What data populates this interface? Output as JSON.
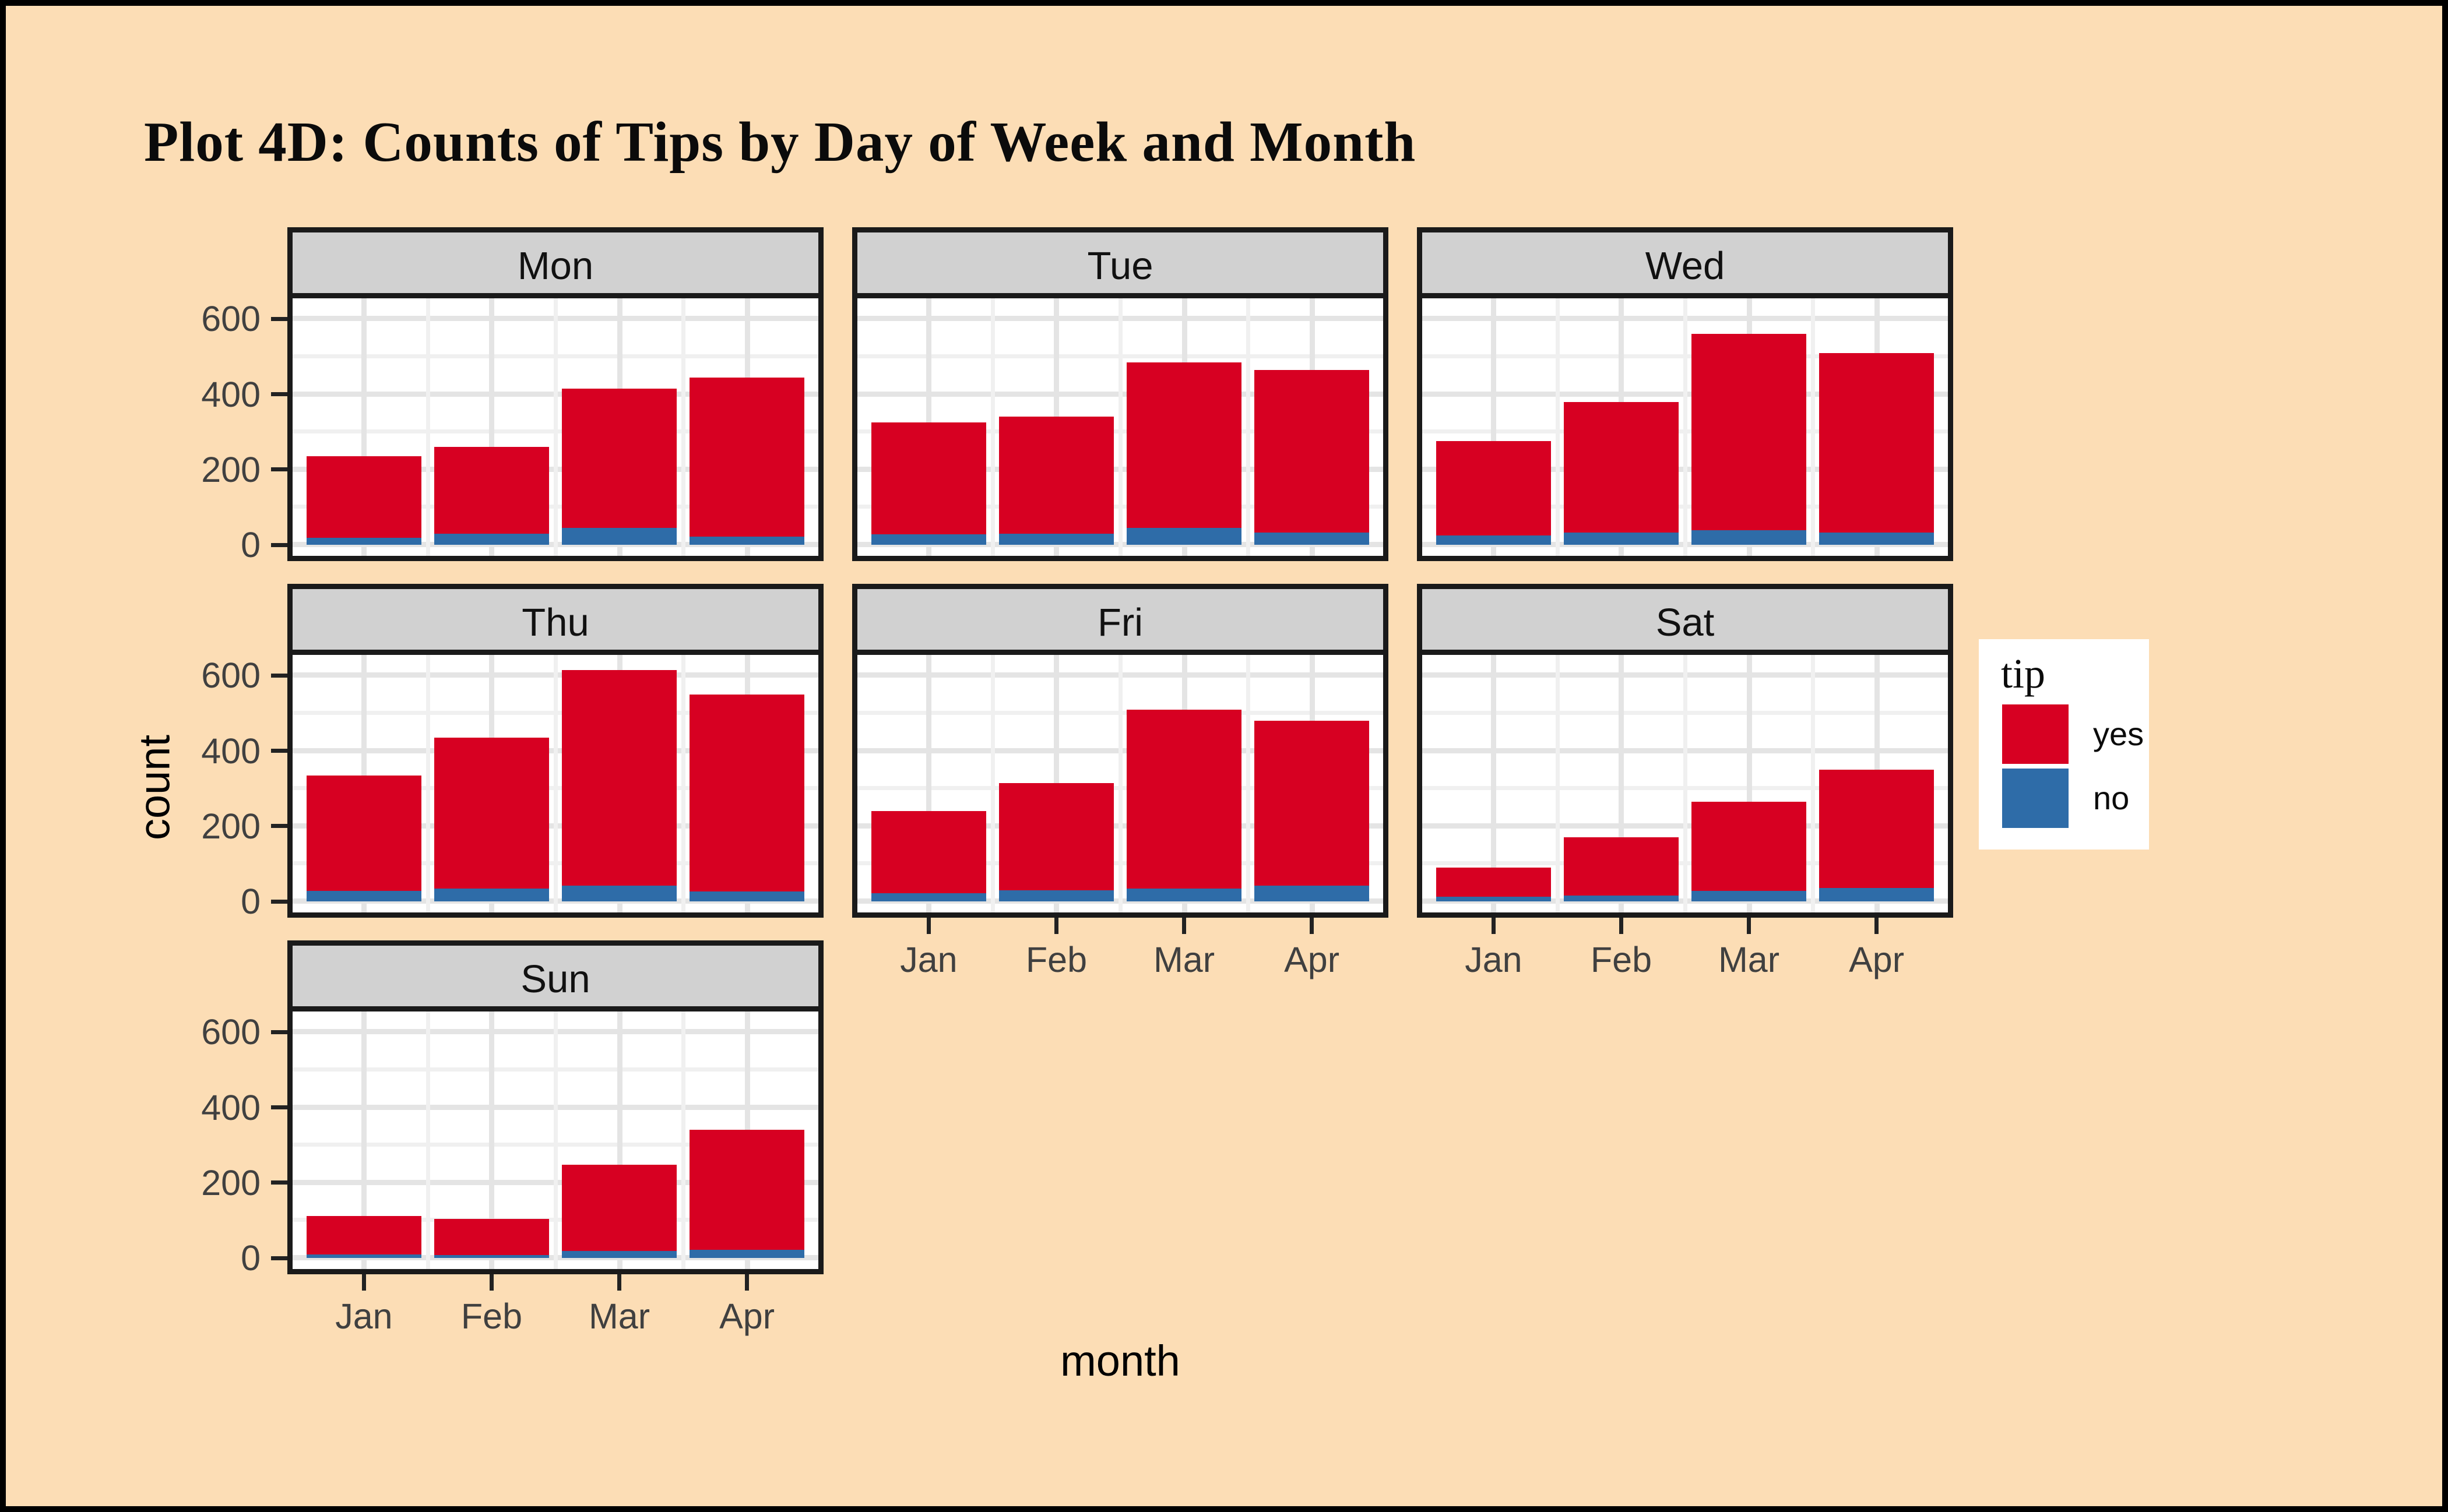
{
  "title": "Plot 4D: Counts of Tips by Day of Week and Month",
  "colors": {
    "yes": "#D70022",
    "no": "#2E6CA8",
    "background": "#FCDDB5",
    "strip_background": "#D1D1D1",
    "panel_border": "#1A1A1A",
    "grid_major": "#E4E4E4",
    "grid_minor": "#F0F0F0",
    "tick_label": "#404040"
  },
  "legend": {
    "title": "tip",
    "entries": [
      {
        "label": "yes",
        "color_key": "yes"
      },
      {
        "label": "no",
        "color_key": "no"
      }
    ]
  },
  "chart_data": {
    "type": "bar",
    "stacked": true,
    "title": "Plot 4D: Counts of Tips by Day of Week and Month",
    "xlabel": "month",
    "ylabel": "count",
    "categories": [
      "Jan",
      "Feb",
      "Mar",
      "Apr"
    ],
    "y_ticks": [
      0,
      200,
      400,
      600
    ],
    "ylim": [
      0,
      650
    ],
    "grid": true,
    "legend_position": "right",
    "facet_by": "day of week",
    "facets": [
      {
        "label": "Mon",
        "row": 0,
        "col": 0,
        "show_x_axis": false,
        "show_y_axis": true,
        "series": {
          "no": [
            18,
            30,
            45,
            22
          ],
          "yes": [
            217,
            230,
            370,
            423
          ]
        },
        "totals": [
          235,
          260,
          415,
          445
        ]
      },
      {
        "label": "Tue",
        "row": 0,
        "col": 1,
        "show_x_axis": false,
        "show_y_axis": false,
        "series": {
          "no": [
            28,
            30,
            45,
            32
          ],
          "yes": [
            297,
            310,
            440,
            433
          ]
        },
        "totals": [
          325,
          340,
          485,
          465
        ]
      },
      {
        "label": "Wed",
        "row": 0,
        "col": 2,
        "show_x_axis": false,
        "show_y_axis": false,
        "series": {
          "no": [
            25,
            32,
            38,
            33
          ],
          "yes": [
            250,
            348,
            522,
            477
          ]
        },
        "totals": [
          275,
          380,
          560,
          510
        ]
      },
      {
        "label": "Thu",
        "row": 1,
        "col": 0,
        "show_x_axis": false,
        "show_y_axis": true,
        "series": {
          "no": [
            28,
            34,
            42,
            26
          ],
          "yes": [
            307,
            401,
            573,
            524
          ]
        },
        "totals": [
          335,
          435,
          615,
          550
        ]
      },
      {
        "label": "Fri",
        "row": 1,
        "col": 1,
        "show_x_axis": true,
        "show_y_axis": false,
        "series": {
          "no": [
            22,
            30,
            34,
            42
          ],
          "yes": [
            218,
            285,
            476,
            438
          ]
        },
        "totals": [
          240,
          315,
          510,
          480
        ]
      },
      {
        "label": "Sat",
        "row": 1,
        "col": 2,
        "show_x_axis": true,
        "show_y_axis": false,
        "series": {
          "no": [
            12,
            15,
            28,
            35
          ],
          "yes": [
            78,
            155,
            237,
            315
          ]
        },
        "totals": [
          90,
          170,
          265,
          350
        ]
      },
      {
        "label": "Sun",
        "row": 2,
        "col": 0,
        "show_x_axis": true,
        "show_y_axis": true,
        "series": {
          "no": [
            10,
            7,
            18,
            22
          ],
          "yes": [
            102,
            96,
            230,
            318
          ]
        },
        "totals": [
          112,
          103,
          248,
          340
        ]
      }
    ]
  }
}
